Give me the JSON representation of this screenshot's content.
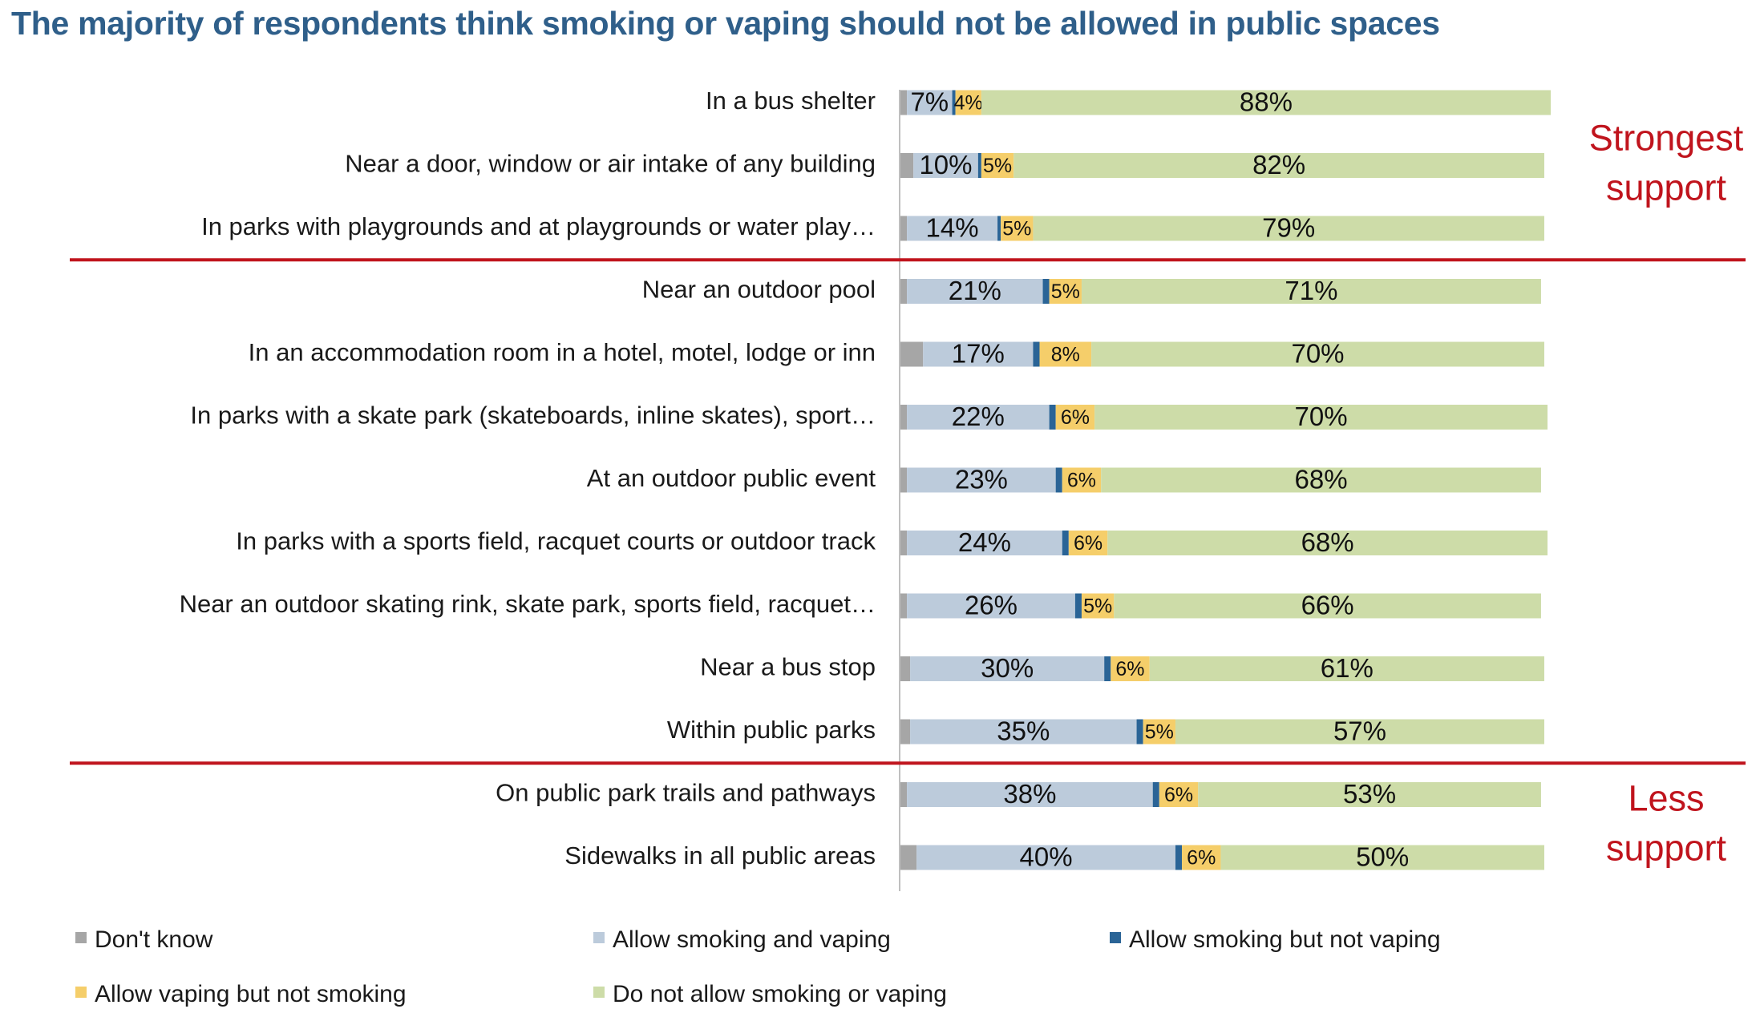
{
  "chart_data": {
    "type": "bar",
    "orientation": "horizontal",
    "stacked": true,
    "title": "The majority of respondents think smoking or vaping should not be allowed in public spaces",
    "categories": [
      "In a bus shelter",
      "Near a door, window or air intake of any building",
      "In parks with playgrounds and at playgrounds or water play…",
      "Near an outdoor pool",
      "In an accommodation room in a hotel, motel, lodge or inn",
      "In parks with a skate park (skateboards, inline skates), sport…",
      "At an outdoor public event",
      "In parks with a sports field, racquet courts or outdoor track",
      "Near an outdoor skating rink, skate park, sports field, racquet…",
      "Near a bus stop",
      "Within public parks",
      "On public park trails and pathways",
      "Sidewalks in all public areas"
    ],
    "series": [
      {
        "name": "Don't know",
        "color": "#a6a6a6",
        "values": [
          1,
          2,
          1,
          1,
          3.5,
          1,
          1,
          1,
          1,
          1.5,
          1.5,
          1,
          2.5
        ]
      },
      {
        "name": "Allow smoking and vaping",
        "color": "#bccbdb",
        "values": [
          7,
          10,
          14,
          21,
          17,
          22,
          23,
          24,
          26,
          30,
          35,
          38,
          40
        ]
      },
      {
        "name": "Allow smoking but not vaping",
        "color": "#2a6496",
        "values": [
          0.5,
          0.5,
          0.5,
          1,
          1,
          1,
          1,
          1,
          1,
          1,
          1,
          1,
          1
        ]
      },
      {
        "name": "Allow vaping but not smoking",
        "color": "#f5ce6a",
        "values": [
          4,
          5,
          5,
          5,
          8,
          6,
          6,
          6,
          5,
          6,
          5,
          6,
          6
        ]
      },
      {
        "name": "Do not allow smoking or vaping",
        "color": "#cddca8",
        "values": [
          88,
          82,
          79,
          71,
          70,
          70,
          68,
          68,
          66,
          61,
          57,
          53,
          50
        ]
      }
    ],
    "data_labels": {
      "Allow smoking and vaping": [
        "7%",
        "10%",
        "14%",
        "21%",
        "17%",
        "22%",
        "23%",
        "24%",
        "26%",
        "30%",
        "35%",
        "38%",
        "40%"
      ],
      "Allow vaping but not smoking": [
        "4%",
        "5%",
        "5%",
        "5%",
        "8%",
        "6%",
        "6%",
        "6%",
        "5%",
        "6%",
        "5%",
        "6%",
        "6%"
      ],
      "Do not allow smoking or vaping": [
        "88%",
        "82%",
        "79%",
        "71%",
        "70%",
        "70%",
        "68%",
        "68%",
        "66%",
        "61%",
        "57%",
        "53%",
        "50%"
      ]
    },
    "xlim": [
      0,
      100
    ],
    "grid": false,
    "legend_position": "bottom",
    "group_separators_after_rows": [
      2,
      10
    ],
    "annotations": [
      {
        "text": [
          "Strongest",
          "support"
        ],
        "rows": [
          0,
          2
        ],
        "color": "#c0141d"
      },
      {
        "text": [
          "Less",
          "support"
        ],
        "rows": [
          11,
          12
        ],
        "color": "#c0141d"
      }
    ],
    "separator_color": "#c0141d"
  }
}
